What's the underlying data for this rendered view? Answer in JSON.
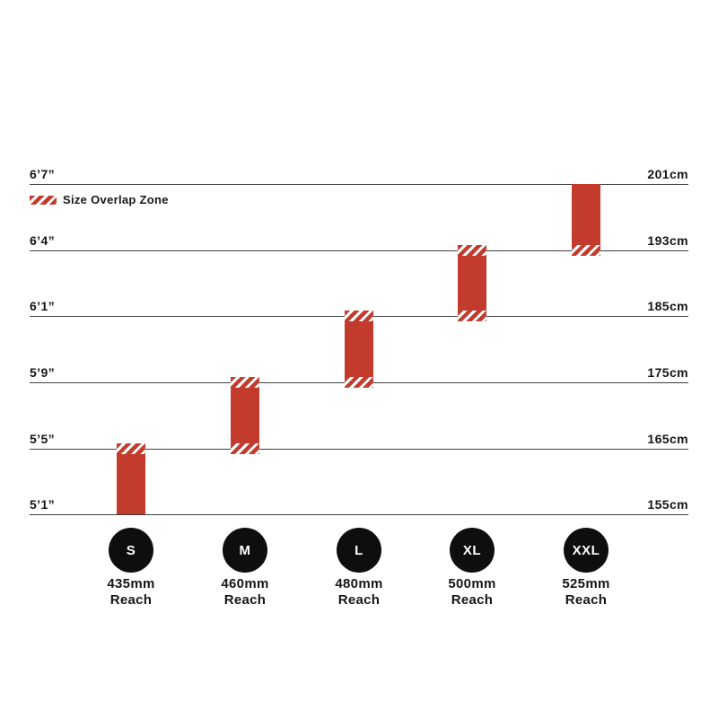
{
  "chart_data": {
    "type": "bar",
    "description": "Bike frame size guide: vertical bars show rider-height range per frame size; hatched bar ends mark overlap between adjacent sizes",
    "legend": {
      "label": "Size Overlap Zone",
      "swatch": "red-white-diagonal-hatch",
      "position": "top-left"
    },
    "grid": "horizontal-lines-on",
    "y_axis": {
      "left_unit": "feet-inches",
      "right_unit": "centimeters",
      "levels": [
        {
          "left": "6’7”",
          "right": "201cm",
          "cm": 201
        },
        {
          "left": "6’4”",
          "right": "193cm",
          "cm": 193
        },
        {
          "left": "6’1”",
          "right": "185cm",
          "cm": 185
        },
        {
          "left": "5’9”",
          "right": "175cm",
          "cm": 175
        },
        {
          "left": "5’5”",
          "right": "165cm",
          "cm": 165
        },
        {
          "left": "5’1”",
          "right": "155cm",
          "cm": 155
        }
      ]
    },
    "series": [
      {
        "size": "S",
        "reach_line1": "435mm",
        "reach_line2": "Reach",
        "range_cm": [
          155,
          165
        ],
        "top_level": 4,
        "bottom_level": 5,
        "overlap_top": true,
        "overlap_bottom": false
      },
      {
        "size": "M",
        "reach_line1": "460mm",
        "reach_line2": "Reach",
        "range_cm": [
          165,
          175
        ],
        "top_level": 3,
        "bottom_level": 4,
        "overlap_top": true,
        "overlap_bottom": true
      },
      {
        "size": "L",
        "reach_line1": "480mm",
        "reach_line2": "Reach",
        "range_cm": [
          175,
          185
        ],
        "top_level": 2,
        "bottom_level": 3,
        "overlap_top": true,
        "overlap_bottom": true
      },
      {
        "size": "XL",
        "reach_line1": "500mm",
        "reach_line2": "Reach",
        "range_cm": [
          185,
          193
        ],
        "top_level": 1,
        "bottom_level": 2,
        "overlap_top": true,
        "overlap_bottom": true
      },
      {
        "size": "XXL",
        "reach_line1": "525mm",
        "reach_line2": "Reach",
        "range_cm": [
          193,
          201
        ],
        "top_level": 0,
        "bottom_level": 1,
        "overlap_top": false,
        "overlap_bottom": true
      }
    ],
    "colors": {
      "bar": "#c23b2c",
      "hatch_stripe": "#ffffff",
      "gridline": "#3f3f3f",
      "text": "#161616",
      "circle": "#0e0e0e",
      "circle_text": "#ffffff",
      "background": "#ffffff"
    }
  }
}
